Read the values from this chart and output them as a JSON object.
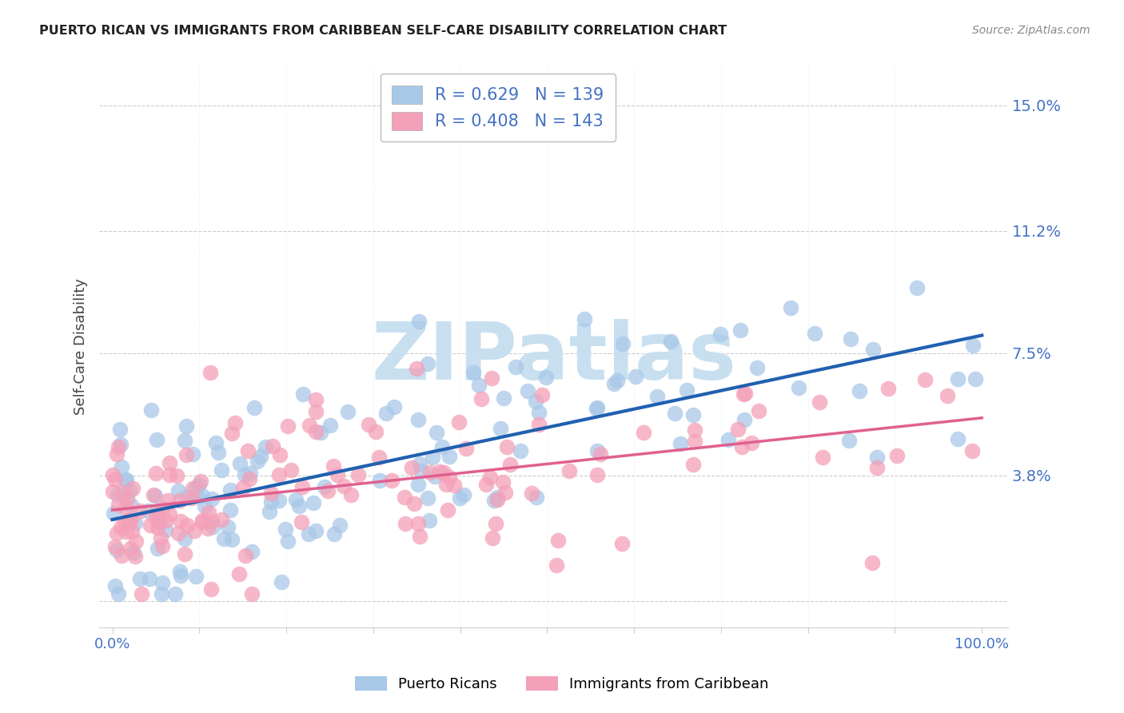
{
  "title": "PUERTO RICAN VS IMMIGRANTS FROM CARIBBEAN SELF-CARE DISABILITY CORRELATION CHART",
  "source": "Source: ZipAtlas.com",
  "ylabel": "Self-Care Disability",
  "legend1_r": "0.629",
  "legend1_n": "139",
  "legend2_r": "0.408",
  "legend2_n": "143",
  "blue_scatter_color": "#a8c8e8",
  "pink_scatter_color": "#f4a0b8",
  "blue_line_color": "#2060b0",
  "pink_line_color": "#e06090",
  "axis_color": "#4472c4",
  "title_color": "#222222",
  "source_color": "#888888",
  "watermark_color": "#c8dff0",
  "grid_color": "#cccccc",
  "background_color": "#ffffff",
  "legend_label1": "Puerto Ricans",
  "legend_label2": "Immigrants from Caribbean",
  "ytick_vals": [
    0.0,
    0.038,
    0.075,
    0.112,
    0.15
  ],
  "ytick_labels": [
    "",
    "3.8%",
    "7.5%",
    "11.2%",
    "15.0%"
  ],
  "ylim": [
    -0.008,
    0.162
  ],
  "xlim": [
    -0.015,
    1.03
  ]
}
